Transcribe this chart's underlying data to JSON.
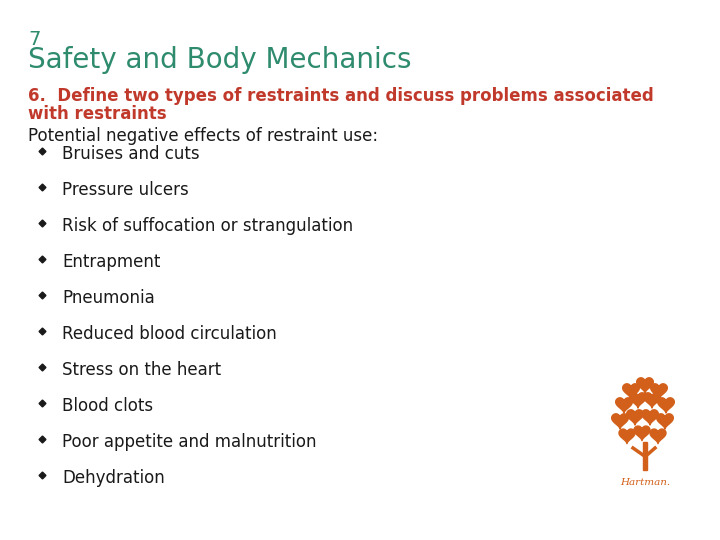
{
  "background_color": "#ffffff",
  "slide_number": "7",
  "title": "Safety and Body Mechanics",
  "title_color": "#2e8b6e",
  "slide_number_color": "#2e8b6e",
  "subtitle_line1": "6.  Define two types of restraints and discuss problems associated",
  "subtitle_line2": "with restraints",
  "subtitle_color": "#c0392b",
  "body_intro": "Potential negative effects of restraint use:",
  "body_intro_color": "#1a1a1a",
  "bullet_items": [
    "Bruises and cuts",
    "Pressure ulcers",
    "Risk of suffocation or strangulation",
    "Entrapment",
    "Pneumonia",
    "Reduced blood circulation",
    "Stress on the heart",
    "Blood clots",
    "Poor appetite and malnutrition",
    "Dehydration"
  ],
  "bullet_color": "#1a1a1a",
  "bullet_marker_color": "#1a1a1a",
  "title_fontsize": 20,
  "slide_number_fontsize": 14,
  "subtitle_fontsize": 12,
  "body_intro_fontsize": 12,
  "bullet_fontsize": 12,
  "logo_text": "Hartman.",
  "logo_color": "#d2601a",
  "tree_color": "#d2601a"
}
